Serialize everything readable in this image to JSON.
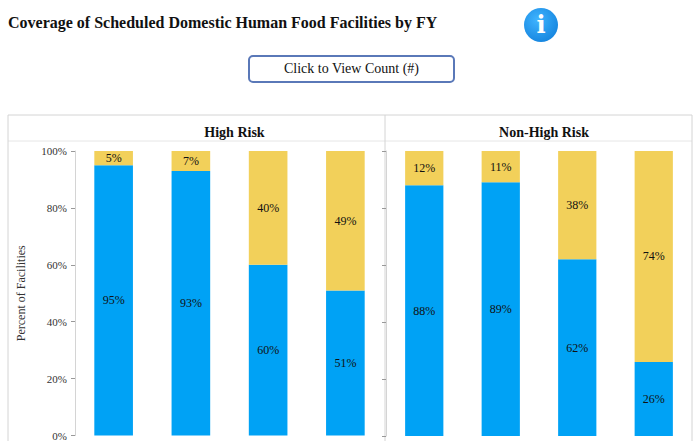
{
  "header": {
    "title": "Coverage of Scheduled Domestic Human Food Facilities by FY",
    "info_icon": "i",
    "button": "Click to View Count (#)"
  },
  "chart_data": [
    {
      "type": "bar",
      "title": "High Risk",
      "y_label": "Percent of Facilities",
      "categories": [
        null,
        null,
        null,
        null
      ],
      "stacked": true,
      "data_labels": true,
      "grid": false,
      "tick_labels": "y",
      "ylim": [
        0,
        100
      ],
      "yticks": [
        {
          "value": 0,
          "label": "0%"
        },
        {
          "value": 20,
          "label": "20%"
        },
        {
          "value": 40,
          "label": "40%"
        },
        {
          "value": 60,
          "label": "60%"
        },
        {
          "value": 80,
          "label": "80%"
        },
        {
          "value": 100,
          "label": "100%"
        }
      ],
      "series": [
        {
          "color": "#00a2f5",
          "values": [
            95,
            93,
            60,
            51
          ],
          "value_labels": [
            "95%",
            "93%",
            "60%",
            "51%"
          ]
        },
        {
          "color": "#f2d05a",
          "values": [
            5,
            7,
            40,
            49
          ],
          "value_labels": [
            "5%",
            "7%",
            "40%",
            "49%"
          ]
        }
      ]
    },
    {
      "type": "bar",
      "title": "Non-High Risk",
      "categories": [
        null,
        null,
        null,
        null
      ],
      "stacked": true,
      "data_labels": true,
      "grid": false,
      "tick_labels": false,
      "ylim": [
        0,
        100
      ],
      "yticks": [
        {
          "value": 0,
          "label": "0%"
        },
        {
          "value": 20,
          "label": "20%"
        },
        {
          "value": 40,
          "label": "40%"
        },
        {
          "value": 60,
          "label": "60%"
        },
        {
          "value": 80,
          "label": "80%"
        },
        {
          "value": 100,
          "label": "100%"
        }
      ],
      "series": [
        {
          "color": "#00a2f5",
          "values": [
            88,
            89,
            62,
            26
          ],
          "value_labels": [
            "88%",
            "89%",
            "62%",
            "26%"
          ]
        },
        {
          "color": "#f2d05a",
          "values": [
            12,
            11,
            38,
            74
          ],
          "value_labels": [
            "12%",
            "11%",
            "38%",
            "74%"
          ]
        }
      ]
    }
  ]
}
